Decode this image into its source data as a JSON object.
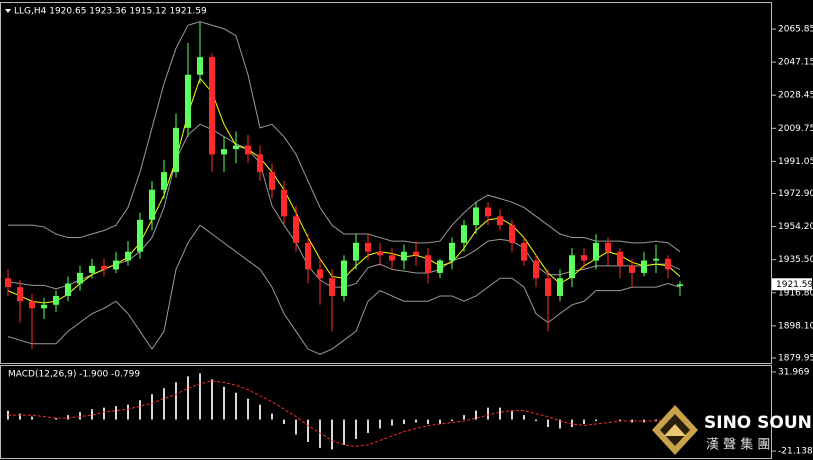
{
  "chart_data": [
    {
      "type": "candlestick",
      "title": "LLG,H4  1920.65 1923.36 1915.12 1921.59",
      "open": [
        1925,
        1920,
        1912,
        1908,
        1910,
        1915,
        1922,
        1928,
        1932,
        1930,
        1935,
        1940,
        1958,
        1975,
        1985,
        2010,
        2040,
        2050,
        1995,
        1998,
        2000,
        1995,
        1985,
        1975,
        1960,
        1945,
        1930,
        1925,
        1915,
        1935,
        1945,
        1940,
        1938,
        1935,
        1940,
        1938,
        1928,
        1935,
        1945,
        1955,
        1965,
        1960,
        1955,
        1945,
        1935,
        1925,
        1915,
        1925,
        1938,
        1935,
        1945,
        1940,
        1932,
        1928,
        1935,
        1936,
        1920.65
      ],
      "high": [
        1930,
        1924,
        1916,
        1914,
        1918,
        1926,
        1932,
        1936,
        1936,
        1940,
        1946,
        1962,
        1980,
        1992,
        2018,
        2058,
        2070,
        2052,
        2005,
        2008,
        2006,
        2000,
        1990,
        1980,
        1966,
        1950,
        1936,
        1930,
        1938,
        1950,
        1950,
        1945,
        1942,
        1944,
        1946,
        1942,
        1936,
        1948,
        1958,
        1968,
        1968,
        1964,
        1958,
        1948,
        1938,
        1930,
        1930,
        1942,
        1942,
        1950,
        1948,
        1942,
        1936,
        1940,
        1944,
        1938,
        1923.36
      ],
      "low": [
        1915,
        1900,
        1885,
        1902,
        1906,
        1912,
        1918,
        1925,
        1926,
        1928,
        1932,
        1936,
        1952,
        1970,
        1982,
        2005,
        2035,
        1985,
        1985,
        1990,
        1990,
        1980,
        1970,
        1955,
        1940,
        1922,
        1910,
        1895,
        1912,
        1930,
        1935,
        1932,
        1930,
        1930,
        1932,
        1922,
        1925,
        1930,
        1940,
        1950,
        1955,
        1952,
        1940,
        1932,
        1920,
        1895,
        1912,
        1920,
        1930,
        1930,
        1932,
        1925,
        1920,
        1926,
        1928,
        1925,
        1915.12
      ],
      "close": [
        1920,
        1912,
        1908,
        1910,
        1915,
        1922,
        1928,
        1932,
        1930,
        1935,
        1940,
        1958,
        1975,
        1985,
        2010,
        2040,
        2050,
        1995,
        1998,
        2000,
        1995,
        1985,
        1975,
        1960,
        1945,
        1930,
        1925,
        1915,
        1935,
        1945,
        1940,
        1938,
        1935,
        1940,
        1938,
        1928,
        1935,
        1945,
        1955,
        1965,
        1960,
        1955,
        1945,
        1935,
        1925,
        1915,
        1925,
        1938,
        1935,
        1945,
        1940,
        1932,
        1928,
        1935,
        1936,
        1930,
        1921.59
      ],
      "up_color": "#5cff5c",
      "down_color": "#ff2a2a",
      "series": [
        {
          "color": "#9a9a9a",
          "values": [
            1955,
            1955,
            1955,
            1954,
            1950,
            1948,
            1948,
            1950,
            1952,
            1955,
            1965,
            1985,
            2010,
            2035,
            2055,
            2068,
            2070,
            2068,
            2066,
            2062,
            2040,
            2010,
            2012,
            2005,
            1995,
            1980,
            1965,
            1955,
            1950,
            1950,
            1950,
            1948,
            1946,
            1946,
            1945,
            1945,
            1946,
            1955,
            1962,
            1968,
            1972,
            1970,
            1968,
            1965,
            1960,
            1955,
            1950,
            1948,
            1948,
            1946,
            1946,
            1946,
            1945,
            1945,
            1946,
            1945,
            1940
          ]
        },
        {
          "color": "#9a9a9a",
          "values": [
            1923,
            1922,
            1921,
            1921,
            1919,
            1921,
            1924,
            1927,
            1930,
            1933,
            1935,
            1940,
            1948,
            1965,
            1992,
            2006,
            2012,
            2009,
            2005,
            2001,
            1998,
            1990,
            1966,
            1955,
            1945,
            1932,
            1924,
            1920,
            1920,
            1922,
            1931,
            1933,
            1930,
            1929,
            1928,
            1928,
            1930,
            1935,
            1937,
            1941,
            1946,
            1947,
            1946,
            1942,
            1932,
            1927,
            1927,
            1929,
            1930,
            1932,
            1932,
            1932,
            1932,
            1932,
            1933,
            1933,
            1930
          ]
        },
        {
          "color": "#9a9a9a",
          "values": [
            1892,
            1890,
            1888,
            1888,
            1888,
            1895,
            1900,
            1905,
            1908,
            1912,
            1905,
            1895,
            1885,
            1895,
            1930,
            1945,
            1955,
            1950,
            1945,
            1940,
            1935,
            1930,
            1920,
            1905,
            1895,
            1885,
            1882,
            1885,
            1890,
            1895,
            1912,
            1918,
            1915,
            1912,
            1912,
            1912,
            1915,
            1915,
            1912,
            1915,
            1920,
            1925,
            1925,
            1920,
            1905,
            1900,
            1905,
            1910,
            1912,
            1918,
            1918,
            1918,
            1920,
            1920,
            1920,
            1922,
            1920
          ]
        },
        {
          "color": "#ffff00",
          "values": [
            1918,
            1915,
            1912,
            1911,
            1912,
            1916,
            1922,
            1927,
            1930,
            1933,
            1937,
            1945,
            1958,
            1972,
            1992,
            2018,
            2038,
            2030,
            2012,
            2000,
            1998,
            1993,
            1985,
            1975,
            1962,
            1948,
            1936,
            1926,
            1925,
            1932,
            1938,
            1940,
            1939,
            1937,
            1938,
            1936,
            1932,
            1934,
            1942,
            1952,
            1958,
            1959,
            1955,
            1948,
            1938,
            1928,
            1922,
            1926,
            1932,
            1936,
            1940,
            1938,
            1934,
            1932,
            1933,
            1932,
            1926
          ]
        }
      ],
      "ylim": [
        1877.1,
        2080.0
      ],
      "yticks": [
        2065.85,
        2047.15,
        2028.45,
        2009.75,
        1991.05,
        {
          "value": 1972.9,
          "label": "1972.90"
        },
        {
          "value": 1954.2,
          "label": "1954.20"
        },
        {
          "value": 1935.5,
          "label": "1935.50"
        },
        {
          "value": 1916.8,
          "label": "1916.80"
        },
        {
          "value": 1898.1,
          "label": "1898.10"
        },
        1879.95
      ],
      "last_price": 1921.59
    },
    {
      "type": "macd",
      "title": "MACD(12,26,9) -1.900 -0.799",
      "histogram": {
        "color": "#d8d8d8",
        "values": [
          6,
          4,
          2,
          0,
          1,
          3,
          5,
          7,
          8,
          9,
          10,
          13,
          17,
          21,
          25,
          29,
          31,
          27,
          22,
          18,
          14,
          10,
          4,
          -3,
          -10,
          -15,
          -19,
          -20,
          -17,
          -13,
          -9,
          -6,
          -4,
          -3,
          -2,
          -3,
          -3,
          -1,
          3,
          6,
          8,
          8,
          6,
          3,
          -1,
          -5,
          -6,
          -5,
          -3,
          -1,
          0,
          -1,
          -2,
          -2,
          -1,
          -1,
          -1.9
        ]
      },
      "signal": {
        "color": "#ff2a2a",
        "values": [
          3,
          3,
          3,
          2,
          1,
          1,
          2,
          3,
          5,
          6,
          7,
          9,
          11,
          14,
          17,
          21,
          24,
          26,
          25,
          23,
          20,
          16,
          12,
          7,
          2,
          -4,
          -9,
          -14,
          -17,
          -18,
          -17,
          -14,
          -11,
          -8,
          -6,
          -4,
          -3,
          -2,
          -1,
          1,
          3,
          5,
          6,
          6,
          4,
          2,
          -1,
          -3,
          -4,
          -3,
          -2,
          -1,
          -1,
          -1,
          -1,
          -1,
          -0.799
        ]
      },
      "ylim": [
        -25.79,
        35.95
      ],
      "yticks": [
        31.969,
        -21.138
      ]
    }
  ],
  "logo": {
    "name": "SINO SOUND",
    "subtitle": "漢 聲 集 團"
  }
}
